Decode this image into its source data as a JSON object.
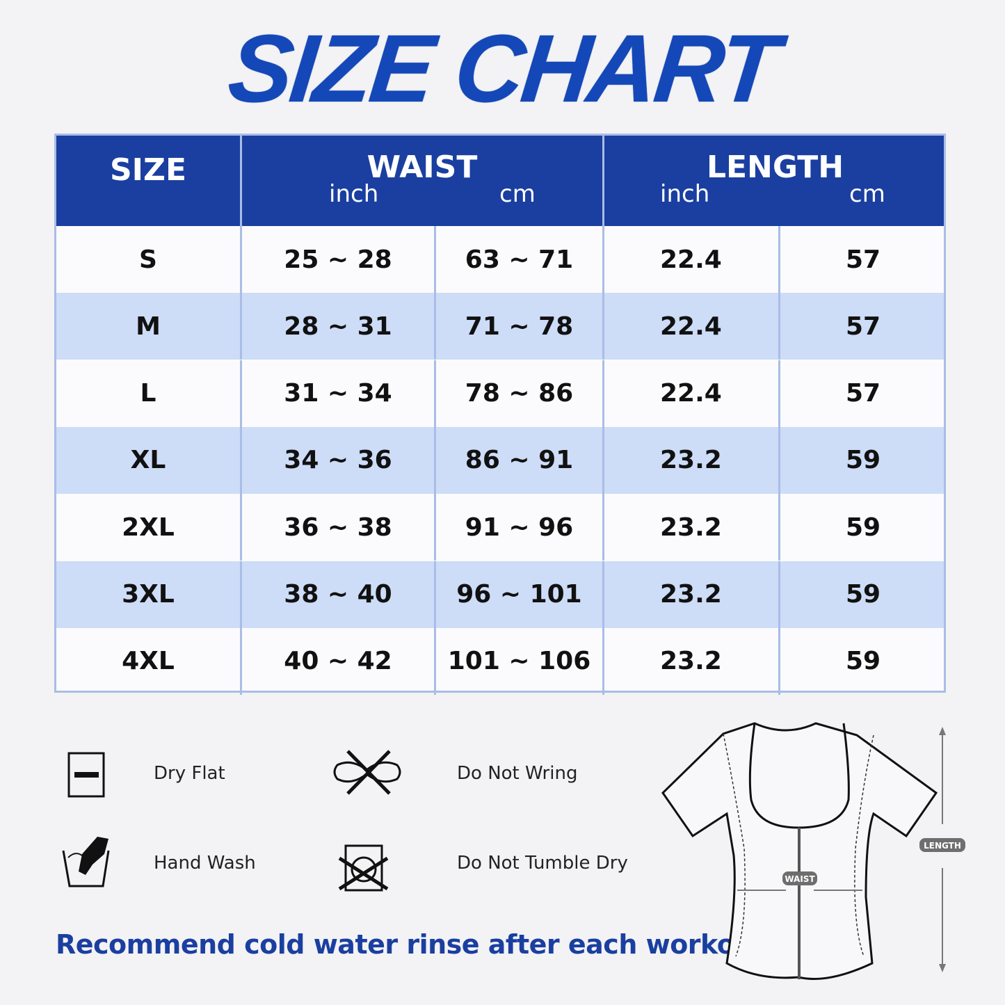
{
  "title": "SIZE CHART",
  "table": {
    "headers": {
      "size": "SIZE",
      "waist": "WAIST",
      "length": "LENGTH",
      "inch": "inch",
      "cm": "cm"
    },
    "rows": [
      {
        "size": "S",
        "waist_inch": "25 ~ 28",
        "waist_cm": "63 ~ 71",
        "length_inch": "22.4",
        "length_cm": "57"
      },
      {
        "size": "M",
        "waist_inch": "28 ~ 31",
        "waist_cm": "71 ~ 78",
        "length_inch": "22.4",
        "length_cm": "57"
      },
      {
        "size": "L",
        "waist_inch": "31 ~ 34",
        "waist_cm": "78 ~ 86",
        "length_inch": "22.4",
        "length_cm": "57"
      },
      {
        "size": "XL",
        "waist_inch": "34 ~ 36",
        "waist_cm": "86 ~ 91",
        "length_inch": "23.2",
        "length_cm": "59"
      },
      {
        "size": "2XL",
        "waist_inch": "36 ~ 38",
        "waist_cm": "91 ~ 96",
        "length_inch": "23.2",
        "length_cm": "59"
      },
      {
        "size": "3XL",
        "waist_inch": "38 ~ 40",
        "waist_cm": "96 ~ 101",
        "length_inch": "23.2",
        "length_cm": "59"
      },
      {
        "size": "4XL",
        "waist_inch": "40 ~ 42",
        "waist_cm": "101 ~ 106",
        "length_inch": "23.2",
        "length_cm": "59"
      }
    ]
  },
  "care": {
    "dry_flat": "Dry Flat",
    "hand_wash": "Hand Wash",
    "do_not_wring": "Do Not Wring",
    "do_not_tumble_dry": "Do Not Tumble Dry"
  },
  "note": "Recommend cold water rinse after each workout.",
  "diagram": {
    "waist_label": "WAIST",
    "length_label": "LENGTH"
  },
  "colors": {
    "brand": "#1a3fa0",
    "alt_row": "#cddcf7",
    "border": "#a9bde6",
    "background": "#f3f2f4"
  }
}
